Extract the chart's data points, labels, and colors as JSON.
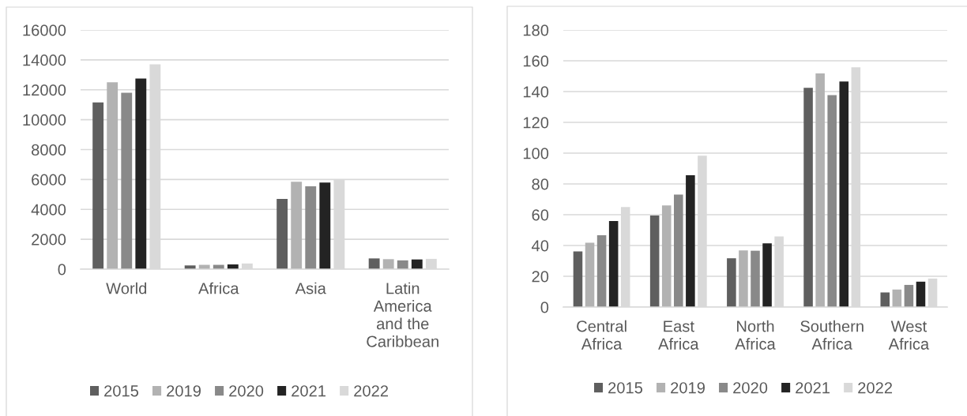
{
  "chart_data": [
    {
      "type": "bar",
      "categories": [
        "World",
        "Africa",
        "Asia",
        "Latin America and the Caribbean"
      ],
      "series": [
        {
          "name": "2015",
          "color": "#5f5f5f",
          "values": [
            11150,
            250,
            4700,
            720
          ]
        },
        {
          "name": "2019",
          "color": "#b2b2b2",
          "values": [
            12500,
            290,
            5850,
            670
          ]
        },
        {
          "name": "2020",
          "color": "#898989",
          "values": [
            11800,
            290,
            5550,
            590
          ]
        },
        {
          "name": "2021",
          "color": "#232323",
          "values": [
            12750,
            320,
            5800,
            650
          ]
        },
        {
          "name": "2022",
          "color": "#d9d9d9",
          "values": [
            13700,
            380,
            6000,
            690
          ]
        }
      ],
      "ylim": [
        0,
        16000
      ],
      "yticks": [
        0,
        2000,
        4000,
        6000,
        8000,
        10000,
        12000,
        14000,
        16000
      ],
      "grid": "y",
      "legend": "bottom"
    },
    {
      "type": "bar",
      "categories": [
        "Central Africa",
        "East Africa",
        "North Africa",
        "Southern Africa",
        "West Africa"
      ],
      "series": [
        {
          "name": "2015",
          "color": "#5f5f5f",
          "values": [
            36.2,
            59.5,
            31.7,
            142.4,
            9.5
          ]
        },
        {
          "name": "2019",
          "color": "#b2b2b2",
          "values": [
            41.8,
            66.0,
            36.8,
            151.8,
            11.4
          ]
        },
        {
          "name": "2020",
          "color": "#898989",
          "values": [
            46.7,
            73.1,
            36.6,
            137.7,
            14.4
          ]
        },
        {
          "name": "2021",
          "color": "#232323",
          "values": [
            55.9,
            85.7,
            41.4,
            146.5,
            16.5
          ]
        },
        {
          "name": "2022",
          "color": "#d9d9d9",
          "values": [
            65.0,
            98.3,
            45.9,
            155.8,
            18.5
          ]
        }
      ],
      "ylim": [
        0,
        180
      ],
      "yticks": [
        0,
        20,
        40,
        60,
        80,
        100,
        120,
        140,
        160,
        180
      ],
      "grid": "y",
      "legend": "bottom"
    }
  ]
}
